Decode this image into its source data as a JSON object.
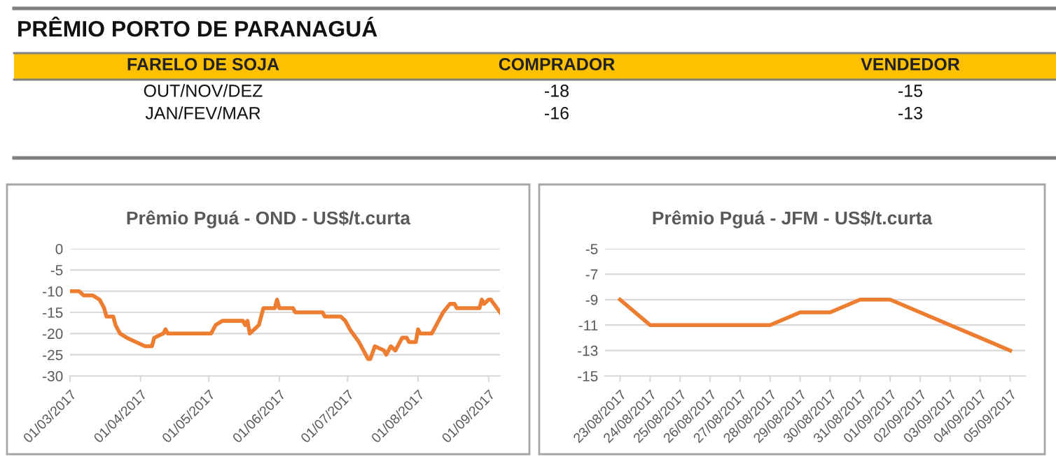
{
  "chart_data": [
    {
      "type": "other",
      "title": "PRÊMIO PORTO DE PARANAGUÁ",
      "color": "#ffc000",
      "categories": [
        "FARELO DE SOJA",
        "COMPRADOR",
        "VENDEDOR"
      ],
      "annotations": [
        "OUT/NOV/DEZ",
        "-18",
        "-15",
        "JAN/FEV/MAR",
        "-16",
        "-13"
      ]
    },
    {
      "type": "line",
      "title": "Prêmio Pguá - OND - US$/t.curta",
      "x": [
        "2017-03-01",
        "2017-03-05",
        "2017-03-07",
        "2017-03-11",
        "2017-03-14",
        "2017-03-16",
        "2017-03-17",
        "2017-03-20",
        "2017-03-21",
        "2017-03-23",
        "2017-03-26",
        "2017-03-30",
        "2017-04-03",
        "2017-04-06",
        "2017-04-07",
        "2017-04-11",
        "2017-04-12",
        "2017-04-13",
        "2017-05-02",
        "2017-05-04",
        "2017-05-07",
        "2017-05-16",
        "2017-05-17",
        "2017-05-18",
        "2017-05-19",
        "2017-05-23",
        "2017-05-25",
        "2017-05-30",
        "2017-05-31",
        "2017-06-01",
        "2017-06-07",
        "2017-06-08",
        "2017-06-20",
        "2017-06-21",
        "2017-06-28",
        "2017-06-30",
        "2017-07-02",
        "2017-07-06",
        "2017-07-10",
        "2017-07-11",
        "2017-07-13",
        "2017-07-17",
        "2017-07-18",
        "2017-07-20",
        "2017-07-22",
        "2017-07-25",
        "2017-07-27",
        "2017-07-28",
        "2017-07-31",
        "2017-08-01",
        "2017-08-02",
        "2017-08-07",
        "2017-08-09",
        "2017-08-12",
        "2017-08-15",
        "2017-08-17",
        "2017-08-18",
        "2017-08-28",
        "2017-08-29",
        "2017-08-30",
        "2017-09-01",
        "2017-09-02",
        "2017-09-06"
      ],
      "series": [
        {
          "color": "#ed7d31",
          "values": [
            -10,
            -10,
            -11,
            -11,
            -12,
            -14,
            -16,
            -16,
            -18,
            -20,
            -21,
            -22,
            -23,
            -23,
            -21,
            -20,
            -19,
            -20,
            -20,
            -18,
            -17,
            -17,
            -18,
            -17,
            -20,
            -18,
            -14,
            -14,
            -12,
            -14,
            -14,
            -15,
            -15,
            -16,
            -16,
            -17,
            -19,
            -22,
            -26,
            -26,
            -23,
            -24,
            -25,
            -23,
            -24,
            -21,
            -21,
            -22,
            -22,
            -19,
            -20,
            -20,
            -18,
            -15,
            -13,
            -13,
            -14,
            -14,
            -12,
            -13,
            -12,
            -12,
            -15
          ]
        }
      ],
      "xlim": [
        "2017-03-01",
        "2017-09-06"
      ],
      "xticks": [
        {
          "value": "2017-03-01",
          "label": "01/03/2017"
        },
        {
          "value": "2017-04-01",
          "label": "01/04/2017"
        },
        {
          "value": "2017-05-01",
          "label": "01/05/2017"
        },
        {
          "value": "2017-06-01",
          "label": "01/06/2017"
        },
        {
          "value": "2017-07-01",
          "label": "01/07/2017"
        },
        {
          "value": "2017-08-01",
          "label": "01/08/2017"
        },
        {
          "value": "2017-09-01",
          "label": "01/09/2017"
        }
      ],
      "ylim": [
        -30,
        0
      ],
      "yticks": [
        -30,
        -25,
        -20,
        -15,
        -10,
        -5,
        0
      ],
      "grid": "y",
      "marker": "none",
      "line_style": "solid"
    },
    {
      "type": "line",
      "title": "Prêmio Pguá - JFM - US$/t.curta",
      "categories": [
        "23/08/2017",
        "24/08/2017",
        "25/08/2017",
        "26/08/2017",
        "27/08/2017",
        "28/08/2017",
        "29/08/2017",
        "30/08/2017",
        "31/08/2017",
        "01/09/2017",
        "02/09/2017",
        "03/09/2017",
        "04/09/2017",
        "05/09/2017"
      ],
      "series": [
        {
          "color": "#ed7d31",
          "values": [
            -9,
            -11,
            -11,
            -11,
            -11,
            -11,
            -10,
            -10,
            -9,
            -9,
            -10,
            -11,
            -12,
            -13
          ]
        }
      ],
      "ylim": [
        -15,
        -5
      ],
      "yticks": [
        -15,
        -13,
        -11,
        -9,
        -7,
        -5
      ],
      "grid": "y",
      "marker": "none",
      "line_style": "solid"
    }
  ]
}
